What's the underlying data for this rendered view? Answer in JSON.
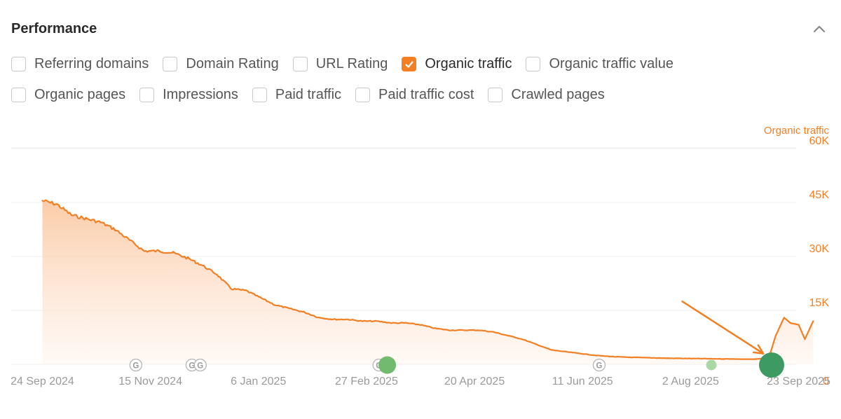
{
  "panel": {
    "title": "Performance"
  },
  "icons": {
    "collapse": "chevron-up-icon",
    "check": "check-icon",
    "google_update": "google-update-icon"
  },
  "colors": {
    "accent": "#f37f24",
    "marker_dark": "#3d9a63",
    "marker_mid": "#72bb6e",
    "marker_light": "#a9d8a6"
  },
  "metrics_row1": [
    {
      "label": "Referring domains",
      "checked": false
    },
    {
      "label": "Domain Rating",
      "checked": false
    },
    {
      "label": "URL Rating",
      "checked": false
    },
    {
      "label": "Organic traffic",
      "checked": true
    },
    {
      "label": "Organic traffic value",
      "checked": false
    }
  ],
  "metrics_row2": [
    {
      "label": "Organic pages",
      "checked": false
    },
    {
      "label": "Impressions",
      "checked": false
    },
    {
      "label": "Paid traffic",
      "checked": false
    },
    {
      "label": "Paid traffic cost",
      "checked": false
    },
    {
      "label": "Crawled pages",
      "checked": false
    }
  ],
  "chart_data": {
    "type": "area",
    "series": [
      {
        "name": "Organic traffic",
        "x": [
          "2024-09-24",
          "2024-10-01",
          "2024-10-08",
          "2024-10-15",
          "2024-10-22",
          "2024-10-29",
          "2024-11-05",
          "2024-11-12",
          "2024-11-19",
          "2024-11-26",
          "2024-12-03",
          "2024-12-10",
          "2024-12-17",
          "2024-12-24",
          "2024-12-31",
          "2025-01-07",
          "2025-01-14",
          "2025-01-21",
          "2025-01-28",
          "2025-02-04",
          "2025-02-11",
          "2025-02-18",
          "2025-02-25",
          "2025-03-04",
          "2025-03-11",
          "2025-03-18",
          "2025-03-25",
          "2025-04-01",
          "2025-04-08",
          "2025-04-15",
          "2025-04-22",
          "2025-04-29",
          "2025-05-06",
          "2025-05-13",
          "2025-05-20",
          "2025-05-27",
          "2025-06-03",
          "2025-06-10",
          "2025-06-17",
          "2025-06-24",
          "2025-07-01",
          "2025-07-08",
          "2025-07-15",
          "2025-07-22",
          "2025-07-29",
          "2025-08-05",
          "2025-08-12",
          "2025-08-19",
          "2025-08-26",
          "2025-09-02",
          "2025-09-05",
          "2025-09-09",
          "2025-09-12",
          "2025-09-16",
          "2025-09-19",
          "2025-09-23",
          "2025-09-26",
          "2025-09-30"
        ],
        "values": [
          45500,
          44500,
          41500,
          40500,
          39500,
          37500,
          34500,
          31500,
          31500,
          31000,
          29500,
          27500,
          25000,
          21000,
          20500,
          18500,
          16500,
          15500,
          14500,
          13000,
          12500,
          12500,
          12000,
          12000,
          11500,
          11500,
          11000,
          10000,
          9500,
          9500,
          9500,
          9000,
          8000,
          7000,
          5500,
          4000,
          3500,
          3000,
          2500,
          2200,
          2000,
          1900,
          1800,
          1700,
          1650,
          1600,
          1550,
          1500,
          1450,
          1450,
          1600,
          2500,
          8000,
          13000,
          11500,
          11000,
          7000,
          12000
        ]
      }
    ],
    "x_tick_labels": [
      "24 Sep 2024",
      "15 Nov 2024",
      "6 Jan 2025",
      "27 Feb 2025",
      "20 Apr 2025",
      "11 Jun 2025",
      "2 Aug 2025",
      "23 Sep 2025"
    ],
    "x_tick_dates": [
      "2024-09-24",
      "2024-11-15",
      "2025-01-06",
      "2025-02-27",
      "2025-04-20",
      "2025-06-11",
      "2025-08-02",
      "2025-09-23"
    ],
    "y_axis_title": "Organic traffic",
    "y_tick_labels": [
      "60K",
      "45K",
      "30K",
      "15K",
      "0"
    ],
    "y_tick_values": [
      60000,
      45000,
      30000,
      15000,
      0
    ],
    "ylim": [
      0,
      60000
    ],
    "xlim": [
      "2024-09-09",
      "2025-10-08"
    ],
    "grid": true,
    "y_axis_position": "right",
    "google_update_markers": [
      "2024-11-08",
      "2024-12-05",
      "2024-12-09",
      "2025-03-05",
      "2025-06-19"
    ],
    "annotation_markers": [
      {
        "date": "2025-03-09",
        "size": "medium",
        "color": "#72bb6e"
      },
      {
        "date": "2025-08-12",
        "size": "small",
        "color": "#a9d8a6"
      },
      {
        "date": "2025-09-10",
        "size": "large",
        "color": "#3d9a63"
      }
    ],
    "annotation_arrow": {
      "from": [
        "2025-07-29",
        17500
      ],
      "to": [
        "2025-09-06",
        3000
      ]
    }
  }
}
